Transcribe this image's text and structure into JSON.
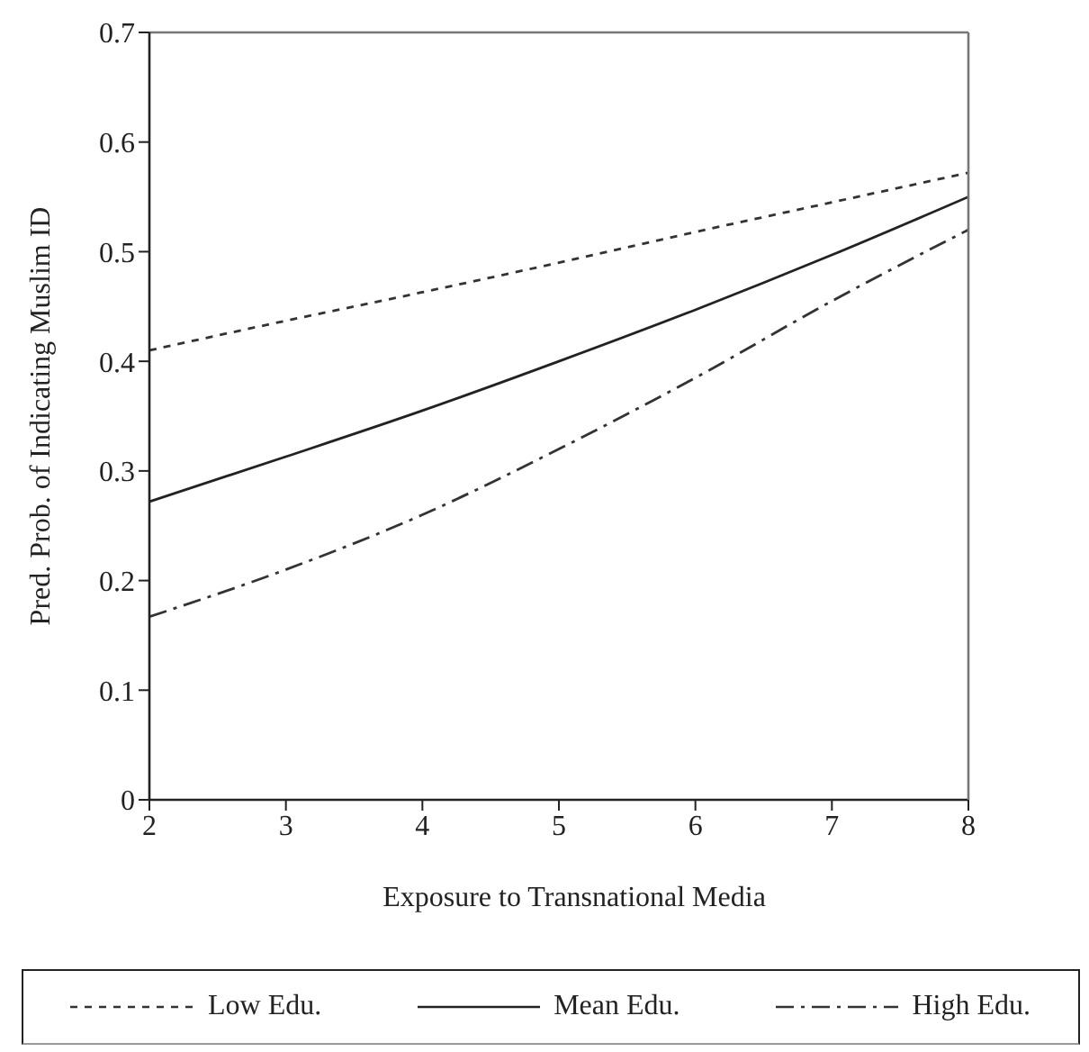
{
  "chart_data": {
    "type": "line",
    "xlabel": "Exposure to Transnational Media",
    "ylabel": "Pred. Prob. of Indicating Muslim ID",
    "x": [
      2,
      3,
      4,
      5,
      6,
      7,
      8
    ],
    "series": [
      {
        "name": "Low Edu.",
        "color": "#333333",
        "line_style": "dashed",
        "values": [
          0.41,
          0.437,
          0.463,
          0.49,
          0.518,
          0.545,
          0.572
        ]
      },
      {
        "name": "Mean Edu.",
        "color": "#222222",
        "line_style": "solid",
        "values": [
          0.272,
          0.313,
          0.355,
          0.4,
          0.447,
          0.497,
          0.55
        ]
      },
      {
        "name": "High Edu.",
        "color": "#333333",
        "line_style": "dashdot",
        "values": [
          0.167,
          0.21,
          0.26,
          0.32,
          0.385,
          0.455,
          0.52
        ]
      }
    ],
    "xlim": [
      2,
      8
    ],
    "xticks": [
      2,
      3,
      4,
      5,
      6,
      7,
      8
    ],
    "ylim": [
      0,
      0.7
    ],
    "yticks": [
      0,
      0.1,
      0.2,
      0.3,
      0.4,
      0.5,
      0.6,
      0.7
    ],
    "grid": false,
    "legend": "bottom",
    "marker": "none"
  }
}
